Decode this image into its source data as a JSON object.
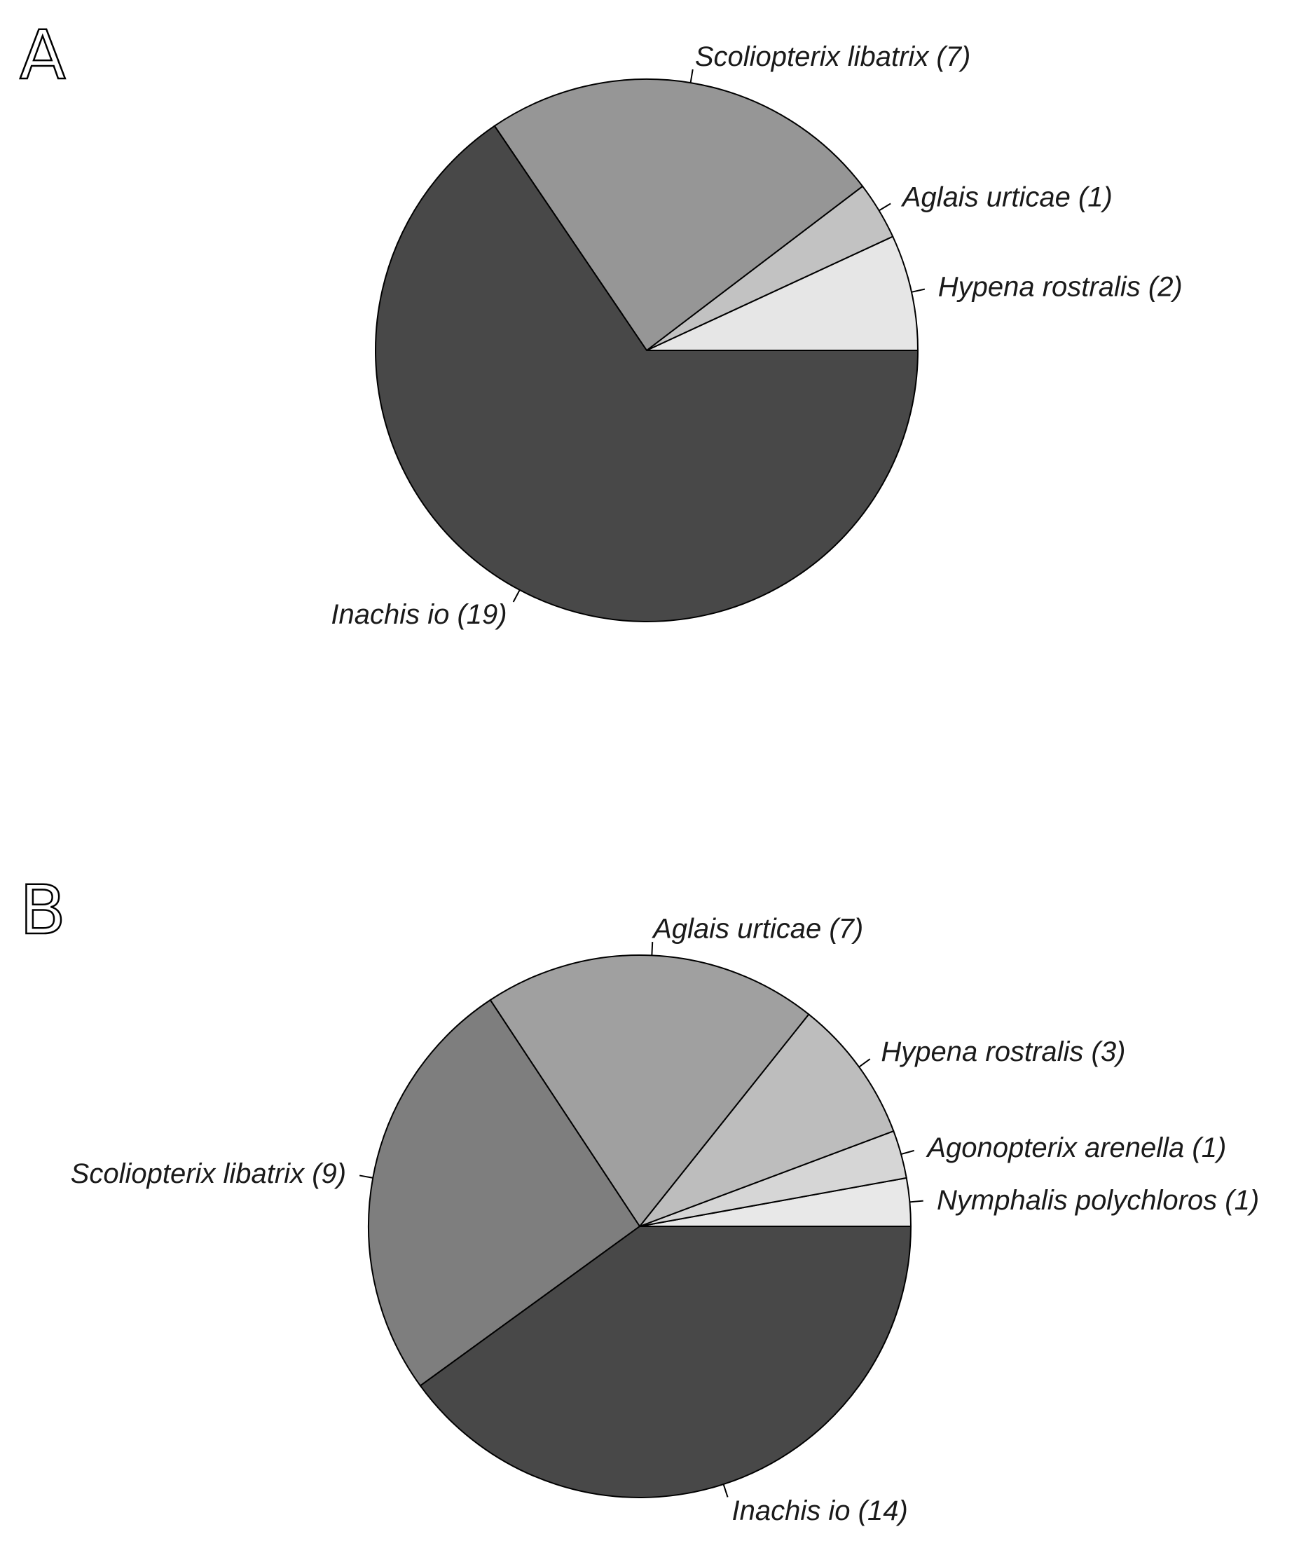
{
  "chart_data": [
    {
      "type": "pie",
      "panel_label": "A",
      "slices": [
        {
          "label": "Hypena rostralis (2)",
          "value": 2,
          "color": "#e6e6e6"
        },
        {
          "label": "Aglais urticae (1)",
          "value": 1,
          "color": "#c2c2c2"
        },
        {
          "label": "Scoliopterix libatrix (7)",
          "value": 7,
          "color": "#969696"
        },
        {
          "label": "Inachis io (19)",
          "value": 19,
          "color": "#484848"
        }
      ]
    },
    {
      "type": "pie",
      "panel_label": "B",
      "slices": [
        {
          "label": "Nymphalis polychloros (1)",
          "value": 1,
          "color": "#e8e8e8"
        },
        {
          "label": "Agonopterix arenella (1)",
          "value": 1,
          "color": "#d6d6d6"
        },
        {
          "label": "Hypena rostralis (3)",
          "value": 3,
          "color": "#bdbdbd"
        },
        {
          "label": "Aglais urticae (7)",
          "value": 7,
          "color": "#a0a0a0"
        },
        {
          "label": "Scoliopterix libatrix (9)",
          "value": 9,
          "color": "#7e7e7e"
        },
        {
          "label": "Inachis io (14)",
          "value": 14,
          "color": "#484848"
        }
      ]
    }
  ]
}
